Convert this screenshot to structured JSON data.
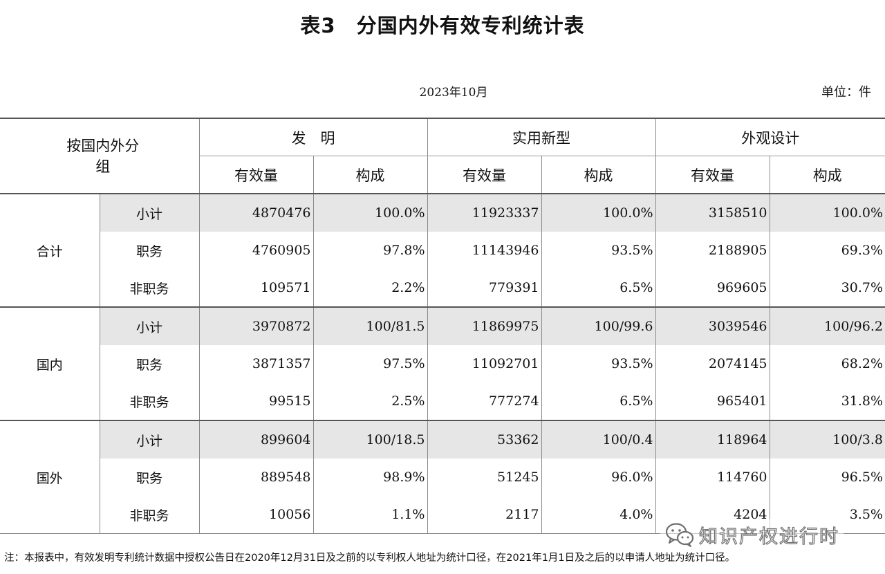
{
  "title": "表3　分国内外有效专利统计表",
  "date": "2023年10月",
  "unit": "单位：件",
  "table": {
    "group_header": "按国内外分组",
    "categories": [
      "发　明",
      "实用新型",
      "外观设计"
    ],
    "sub_headers": [
      "有效量",
      "构成"
    ],
    "groups": [
      {
        "label": "合计",
        "rows": [
          {
            "label": "小计",
            "values": [
              "4870476",
              "100.0%",
              "11923337",
              "100.0%",
              "3158510",
              "100.0%"
            ]
          },
          {
            "label": "职务",
            "values": [
              "4760905",
              "97.8%",
              "11143946",
              "93.5%",
              "2188905",
              "69.3%"
            ]
          },
          {
            "label": "非职务",
            "values": [
              "109571",
              "2.2%",
              "779391",
              "6.5%",
              "969605",
              "30.7%"
            ]
          }
        ]
      },
      {
        "label": "国内",
        "rows": [
          {
            "label": "小计",
            "values": [
              "3970872",
              "100/81.5",
              "11869975",
              "100/99.6",
              "3039546",
              "100/96.2"
            ]
          },
          {
            "label": "职务",
            "values": [
              "3871357",
              "97.5%",
              "11092701",
              "93.5%",
              "2074145",
              "68.2%"
            ]
          },
          {
            "label": "非职务",
            "values": [
              "99515",
              "2.5%",
              "777274",
              "6.5%",
              "965401",
              "31.8%"
            ]
          }
        ]
      },
      {
        "label": "国外",
        "rows": [
          {
            "label": "小计",
            "values": [
              "899604",
              "100/18.5",
              "53362",
              "100/0.4",
              "118964",
              "100/3.8"
            ]
          },
          {
            "label": "职务",
            "values": [
              "889548",
              "98.9%",
              "51245",
              "96.0%",
              "114760",
              "96.5%"
            ]
          },
          {
            "label": "非职务",
            "values": [
              "10056",
              "1.1%",
              "2117",
              "4.0%",
              "4204",
              "3.5%"
            ]
          }
        ]
      }
    ]
  },
  "note": "注：本报表中，有效发明专利统计数据中授权公告日在2020年12月31日及之前的以专利权人地址为统计口径，在2021年1月1日及之后的以申请人地址为统计口径。",
  "watermark": {
    "icon": "wechat-icon",
    "text": "知识产权进行时"
  }
}
